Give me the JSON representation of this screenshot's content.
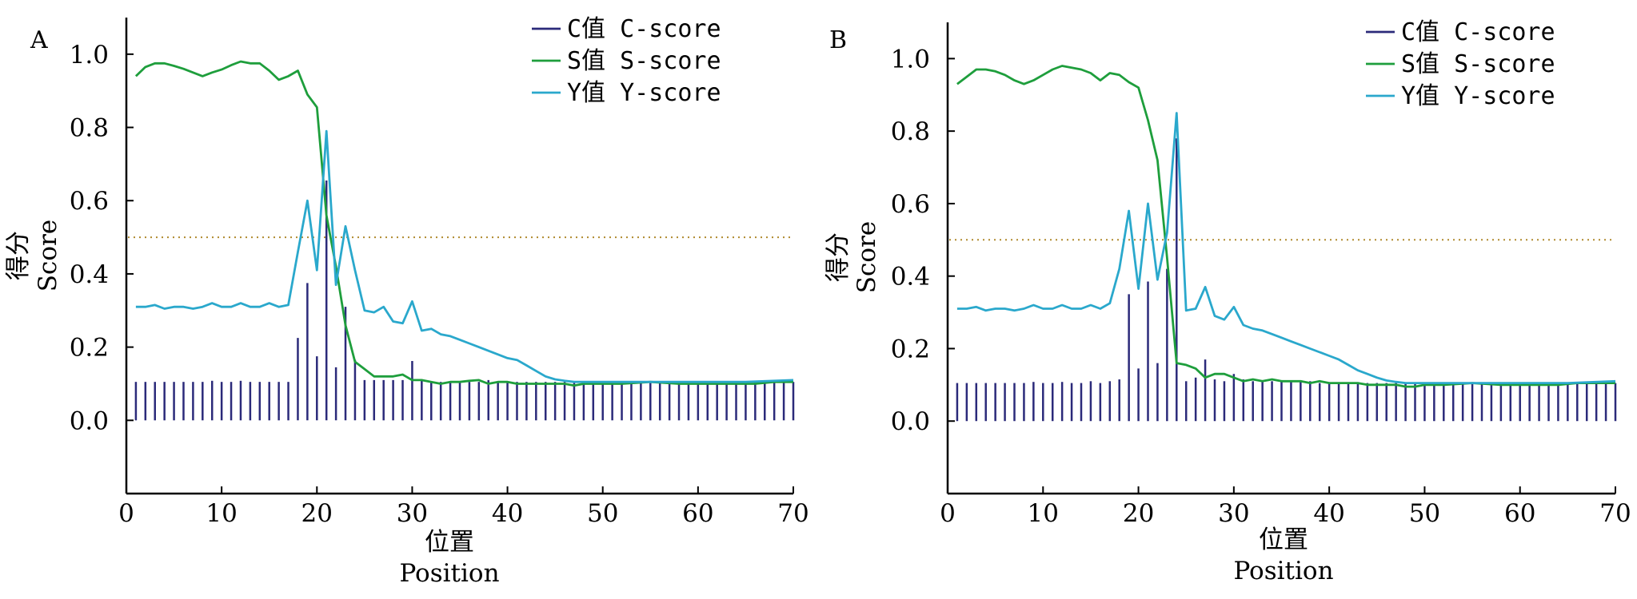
{
  "chart_data": [
    {
      "panel": "A",
      "type": "line",
      "xlabel": [
        "位置",
        "Position"
      ],
      "ylabel": [
        "得分",
        "Score"
      ],
      "xlim": [
        0,
        70
      ],
      "ylim": [
        -0.2,
        1.1
      ],
      "xticks": [
        "0",
        "10",
        "20",
        "30",
        "40",
        "50",
        "60",
        "70"
      ],
      "yticks": [
        "0.0",
        "0.2",
        "0.4",
        "0.6",
        "0.8",
        "1.0"
      ],
      "threshold": 0.5,
      "legend_position": "top-right",
      "legend": [
        "C值 C-score",
        "S值 S-score",
        "Y值 Y-score"
      ],
      "series": [
        {
          "name": "C值 C-score",
          "type": "bar",
          "color": "#2b2a7a",
          "x": [
            1,
            2,
            3,
            4,
            5,
            6,
            7,
            8,
            9,
            10,
            11,
            12,
            13,
            14,
            15,
            16,
            17,
            18,
            19,
            20,
            21,
            22,
            23,
            24,
            25,
            26,
            27,
            28,
            29,
            30,
            31,
            32,
            33,
            34,
            35,
            36,
            37,
            38,
            39,
            40,
            41,
            42,
            43,
            44,
            45,
            46,
            47,
            48,
            49,
            50,
            51,
            52,
            53,
            54,
            55,
            56,
            57,
            58,
            59,
            60,
            61,
            62,
            63,
            64,
            65,
            66,
            67,
            68,
            69,
            70
          ],
          "values": [
            0.105,
            0.105,
            0.105,
            0.105,
            0.105,
            0.105,
            0.105,
            0.105,
            0.108,
            0.105,
            0.105,
            0.108,
            0.105,
            0.105,
            0.105,
            0.105,
            0.105,
            0.225,
            0.375,
            0.175,
            0.655,
            0.145,
            0.31,
            0.165,
            0.11,
            0.11,
            0.11,
            0.11,
            0.11,
            0.162,
            0.11,
            0.105,
            0.105,
            0.105,
            0.105,
            0.105,
            0.105,
            0.11,
            0.105,
            0.105,
            0.105,
            0.105,
            0.105,
            0.105,
            0.105,
            0.105,
            0.105,
            0.105,
            0.105,
            0.105,
            0.105,
            0.105,
            0.105,
            0.105,
            0.105,
            0.105,
            0.105,
            0.105,
            0.105,
            0.105,
            0.105,
            0.105,
            0.105,
            0.105,
            0.105,
            0.105,
            0.105,
            0.105,
            0.105,
            0.105
          ]
        },
        {
          "name": "S值 S-score",
          "type": "line",
          "color": "#1e9e3c",
          "x": [
            1,
            2,
            3,
            4,
            5,
            6,
            7,
            8,
            9,
            10,
            11,
            12,
            13,
            14,
            15,
            16,
            17,
            18,
            19,
            20,
            21,
            22,
            23,
            24,
            25,
            26,
            27,
            28,
            29,
            30,
            31,
            32,
            33,
            34,
            35,
            36,
            37,
            38,
            39,
            40,
            41,
            42,
            43,
            44,
            45,
            46,
            47,
            48,
            49,
            50,
            52,
            55,
            58,
            60,
            62,
            64,
            66,
            68,
            70
          ],
          "values": [
            0.94,
            0.965,
            0.975,
            0.975,
            0.968,
            0.96,
            0.95,
            0.94,
            0.95,
            0.958,
            0.97,
            0.98,
            0.975,
            0.975,
            0.955,
            0.93,
            0.94,
            0.955,
            0.89,
            0.855,
            0.56,
            0.42,
            0.26,
            0.16,
            0.14,
            0.12,
            0.12,
            0.12,
            0.125,
            0.11,
            0.11,
            0.105,
            0.1,
            0.105,
            0.105,
            0.108,
            0.11,
            0.1,
            0.105,
            0.105,
            0.1,
            0.1,
            0.1,
            0.1,
            0.1,
            0.1,
            0.095,
            0.1,
            0.1,
            0.1,
            0.1,
            0.105,
            0.1,
            0.1,
            0.1,
            0.1,
            0.1,
            0.105,
            0.105
          ]
        },
        {
          "name": "Y值 Y-score",
          "type": "line",
          "color": "#2aa8cc",
          "x": [
            1,
            2,
            3,
            4,
            5,
            6,
            7,
            8,
            9,
            10,
            11,
            12,
            13,
            14,
            15,
            16,
            17,
            18,
            19,
            20,
            21,
            22,
            23,
            24,
            25,
            26,
            27,
            28,
            29,
            30,
            31,
            32,
            33,
            34,
            35,
            36,
            37,
            38,
            39,
            40,
            41,
            42,
            43,
            44,
            45,
            46,
            47,
            48,
            50,
            55,
            60,
            65,
            70
          ],
          "values": [
            0.31,
            0.31,
            0.315,
            0.305,
            0.31,
            0.31,
            0.305,
            0.31,
            0.32,
            0.31,
            0.31,
            0.32,
            0.31,
            0.31,
            0.32,
            0.31,
            0.315,
            0.46,
            0.6,
            0.41,
            0.79,
            0.37,
            0.53,
            0.41,
            0.3,
            0.295,
            0.31,
            0.27,
            0.265,
            0.325,
            0.245,
            0.25,
            0.235,
            0.23,
            0.22,
            0.21,
            0.2,
            0.19,
            0.18,
            0.17,
            0.165,
            0.15,
            0.135,
            0.12,
            0.112,
            0.108,
            0.105,
            0.105,
            0.105,
            0.105,
            0.105,
            0.105,
            0.11
          ]
        }
      ]
    },
    {
      "panel": "B",
      "type": "line",
      "xlabel": [
        "位置",
        "Position"
      ],
      "ylabel": [
        "得分",
        "Score"
      ],
      "xlim": [
        0,
        70
      ],
      "ylim": [
        -0.2,
        1.1
      ],
      "xticks": [
        "0",
        "10",
        "20",
        "30",
        "40",
        "50",
        "60",
        "70"
      ],
      "yticks": [
        "0.0",
        "0.2",
        "0.4",
        "0.6",
        "0.8",
        "1.0"
      ],
      "threshold": 0.5,
      "legend_position": "top-right",
      "legend": [
        "C值 C-score",
        "S值 S-score",
        "Y值 Y-score"
      ],
      "series": [
        {
          "name": "C值 C-score",
          "type": "bar",
          "color": "#2b2a7a",
          "x": [
            1,
            2,
            3,
            4,
            5,
            6,
            7,
            8,
            9,
            10,
            11,
            12,
            13,
            14,
            15,
            16,
            17,
            18,
            19,
            20,
            21,
            22,
            23,
            24,
            25,
            26,
            27,
            28,
            29,
            30,
            31,
            32,
            33,
            34,
            35,
            36,
            37,
            38,
            39,
            40,
            41,
            42,
            43,
            44,
            45,
            46,
            47,
            48,
            49,
            50,
            51,
            52,
            53,
            54,
            55,
            56,
            57,
            58,
            59,
            60,
            61,
            62,
            63,
            64,
            65,
            66,
            67,
            68,
            69,
            70
          ],
          "values": [
            0.105,
            0.105,
            0.105,
            0.105,
            0.105,
            0.105,
            0.105,
            0.105,
            0.108,
            0.105,
            0.105,
            0.108,
            0.105,
            0.105,
            0.11,
            0.105,
            0.11,
            0.115,
            0.35,
            0.145,
            0.385,
            0.16,
            0.42,
            0.78,
            0.11,
            0.12,
            0.17,
            0.115,
            0.11,
            0.13,
            0.115,
            0.11,
            0.11,
            0.11,
            0.11,
            0.11,
            0.11,
            0.11,
            0.105,
            0.105,
            0.105,
            0.105,
            0.105,
            0.105,
            0.105,
            0.105,
            0.105,
            0.105,
            0.105,
            0.105,
            0.105,
            0.105,
            0.105,
            0.105,
            0.105,
            0.105,
            0.105,
            0.105,
            0.105,
            0.105,
            0.105,
            0.105,
            0.105,
            0.105,
            0.105,
            0.105,
            0.105,
            0.105,
            0.105,
            0.105
          ]
        },
        {
          "name": "S值 S-score",
          "type": "line",
          "color": "#1e9e3c",
          "x": [
            1,
            2,
            3,
            4,
            5,
            6,
            7,
            8,
            9,
            10,
            11,
            12,
            13,
            14,
            15,
            16,
            17,
            18,
            19,
            20,
            21,
            22,
            23,
            24,
            25,
            26,
            27,
            28,
            29,
            30,
            31,
            32,
            33,
            34,
            35,
            36,
            37,
            38,
            39,
            40,
            41,
            42,
            43,
            44,
            45,
            46,
            47,
            48,
            49,
            50,
            52,
            55,
            58,
            60,
            62,
            64,
            66,
            68,
            70
          ],
          "values": [
            0.93,
            0.95,
            0.97,
            0.97,
            0.965,
            0.955,
            0.94,
            0.93,
            0.94,
            0.955,
            0.97,
            0.98,
            0.975,
            0.97,
            0.96,
            0.94,
            0.96,
            0.955,
            0.935,
            0.92,
            0.83,
            0.72,
            0.45,
            0.16,
            0.155,
            0.145,
            0.12,
            0.13,
            0.13,
            0.12,
            0.11,
            0.115,
            0.11,
            0.115,
            0.11,
            0.11,
            0.11,
            0.105,
            0.11,
            0.105,
            0.105,
            0.105,
            0.105,
            0.1,
            0.1,
            0.1,
            0.1,
            0.095,
            0.095,
            0.1,
            0.1,
            0.105,
            0.1,
            0.1,
            0.1,
            0.1,
            0.105,
            0.105,
            0.105
          ]
        },
        {
          "name": "Y值 Y-score",
          "type": "line",
          "color": "#2aa8cc",
          "x": [
            1,
            2,
            3,
            4,
            5,
            6,
            7,
            8,
            9,
            10,
            11,
            12,
            13,
            14,
            15,
            16,
            17,
            18,
            19,
            20,
            21,
            22,
            23,
            24,
            25,
            26,
            27,
            28,
            29,
            30,
            31,
            32,
            33,
            34,
            35,
            36,
            37,
            38,
            39,
            40,
            41,
            42,
            43,
            44,
            45,
            46,
            47,
            48,
            50,
            55,
            60,
            65,
            70
          ],
          "values": [
            0.31,
            0.31,
            0.315,
            0.305,
            0.31,
            0.31,
            0.305,
            0.31,
            0.32,
            0.31,
            0.31,
            0.32,
            0.31,
            0.31,
            0.32,
            0.31,
            0.325,
            0.42,
            0.58,
            0.365,
            0.6,
            0.39,
            0.52,
            0.85,
            0.305,
            0.31,
            0.37,
            0.29,
            0.28,
            0.315,
            0.265,
            0.255,
            0.25,
            0.24,
            0.23,
            0.22,
            0.21,
            0.2,
            0.19,
            0.18,
            0.17,
            0.155,
            0.14,
            0.13,
            0.12,
            0.112,
            0.108,
            0.105,
            0.105,
            0.105,
            0.105,
            0.105,
            0.11
          ]
        }
      ]
    }
  ]
}
